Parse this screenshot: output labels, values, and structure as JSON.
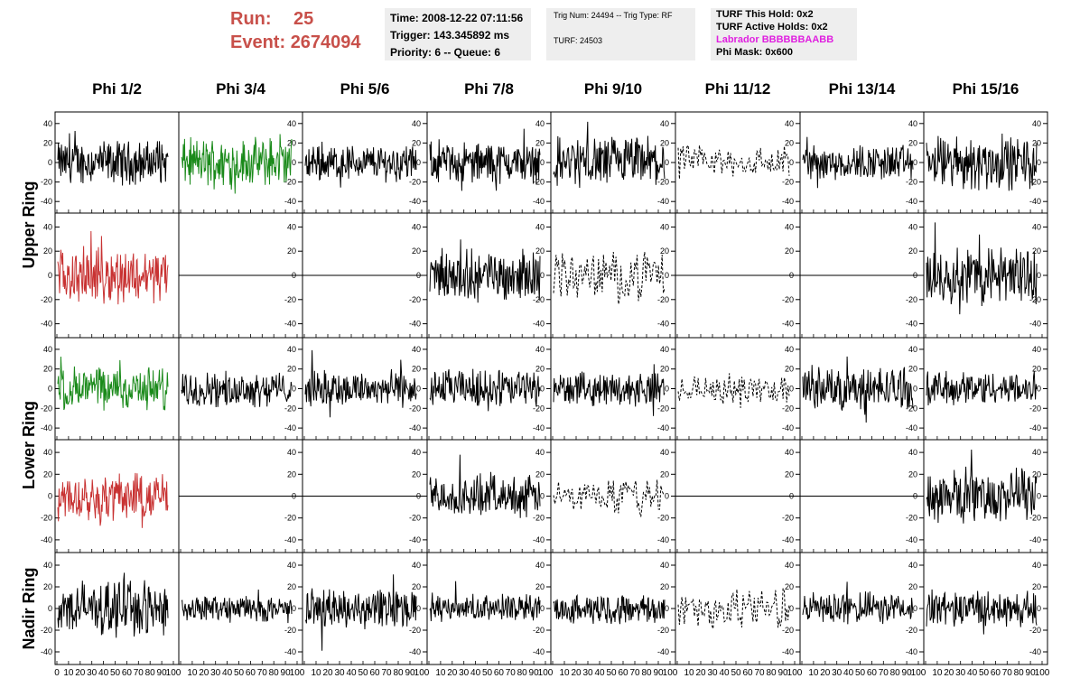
{
  "header": {
    "run_label": "Run:",
    "run_value": "25",
    "event_label": "Event:",
    "event_value": "2674094",
    "time": "Time: 2008-12-22 07:11:56",
    "trigger": "Trigger: 143.345892 ms",
    "priority": "Priority: 6 -- Queue: 6",
    "trig_num": "Trig Num: 24494 -- Trig Type: RF",
    "turf": "TURF: 24503",
    "turf_this_hold": "TURF This Hold: 0x2",
    "turf_active_holds": "TURF Active Holds: 0x2",
    "labrador": "Labrador BBBBBBAABB",
    "phi_mask": "Phi Mask: 0x600"
  },
  "colors": {
    "header_red": "#c8504a",
    "labrador_magenta": "#e020e0",
    "trace_black": "#000000",
    "trace_green": "#1a8a1a",
    "trace_red": "#c83232",
    "info_box_bg": "#eeeeee"
  },
  "chart_data": {
    "type": "line",
    "columns": [
      "Phi 1/2",
      "Phi 3/4",
      "Phi 5/6",
      "Phi 7/8",
      "Phi 9/10",
      "Phi 11/12",
      "Phi 13/14",
      "Phi 15/16"
    ],
    "row_labels": [
      "Upper Ring",
      "Lower Ring",
      "Nadir Ring"
    ],
    "ylim": [
      -50,
      50
    ],
    "xlim": [
      0,
      100
    ],
    "yticks": [
      -40,
      -20,
      0,
      20,
      40
    ],
    "xticks": [
      0,
      10,
      20,
      30,
      40,
      50,
      60,
      70,
      80,
      90,
      100
    ],
    "panels": [
      [
        "black",
        "green",
        "black",
        "black",
        "black",
        "dashed",
        "black",
        "black"
      ],
      [
        "red",
        "flat",
        "flat",
        "black",
        "dashed",
        "flat",
        "flat",
        "black"
      ],
      [
        "green",
        "black",
        "black",
        "black",
        "black",
        "dashed",
        "black",
        "black"
      ],
      [
        "red",
        "flat",
        "flat",
        "black",
        "dashed",
        "flat",
        "flat",
        "black"
      ],
      [
        "black",
        "black",
        "black",
        "black",
        "black",
        "dashed",
        "black",
        "black"
      ]
    ],
    "amplitudes": [
      [
        18,
        20,
        15,
        17,
        22,
        14,
        15,
        22
      ],
      [
        18,
        0,
        0,
        17,
        16,
        0,
        0,
        20
      ],
      [
        18,
        14,
        15,
        16,
        13,
        12,
        18,
        14
      ],
      [
        18,
        0,
        0,
        15,
        12,
        0,
        0,
        20
      ],
      [
        20,
        10,
        15,
        10,
        11,
        15,
        12,
        13
      ]
    ]
  }
}
